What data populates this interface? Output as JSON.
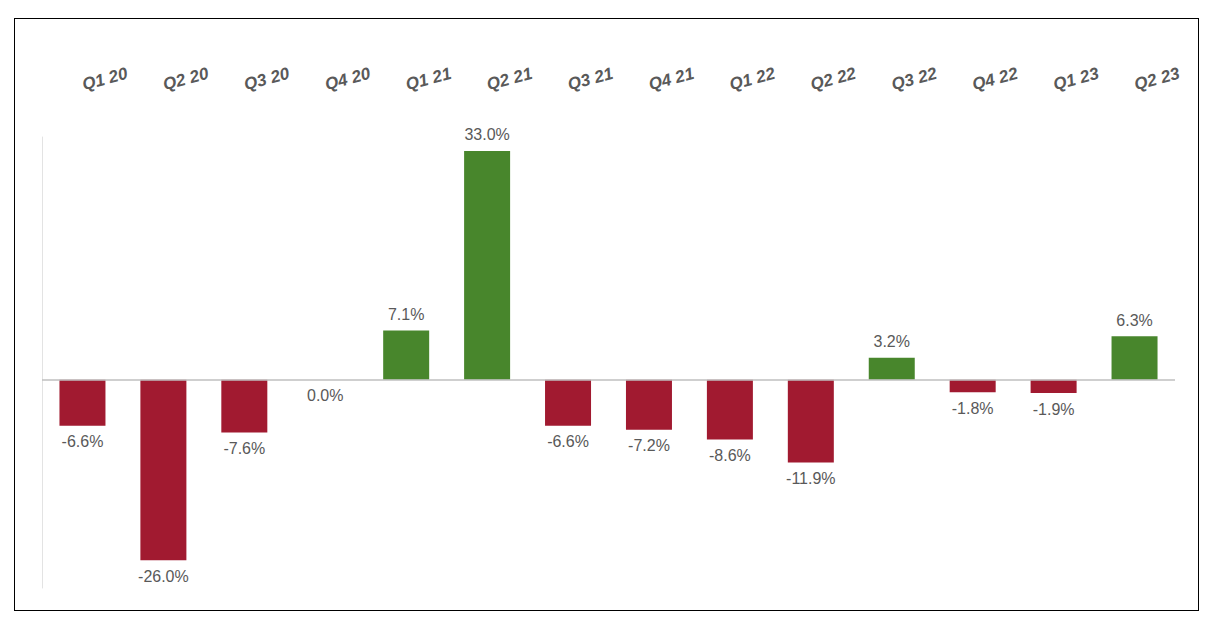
{
  "chart_data": {
    "type": "bar",
    "categories": [
      "Q1 20",
      "Q2 20",
      "Q3 20",
      "Q4 20",
      "Q1 21",
      "Q2 21",
      "Q3 21",
      "Q4 21",
      "Q1 22",
      "Q2 22",
      "Q3 22",
      "Q4 22",
      "Q1 23",
      "Q2 23"
    ],
    "values": [
      -6.6,
      -26.0,
      -7.6,
      0.0,
      7.1,
      33.0,
      -6.6,
      -7.2,
      -8.6,
      -11.9,
      3.2,
      -1.8,
      -1.9,
      6.3
    ],
    "value_labels": [
      "-6.6%",
      "-26.0%",
      "-7.6%",
      "0.0%",
      "7.1%",
      "33.0%",
      "-6.6%",
      "-7.2%",
      "-8.6%",
      "-11.9%",
      "3.2%",
      "-1.8%",
      "-1.9%",
      "6.3%"
    ],
    "colors": [
      "#a11a30",
      "#a11a30",
      "#a11a30",
      "#a11a30",
      "#48862c",
      "#48862c",
      "#a11a30",
      "#a11a30",
      "#a11a30",
      "#a11a30",
      "#48862c",
      "#a11a30",
      "#a11a30",
      "#48862c"
    ],
    "ylim": [
      -30,
      35
    ],
    "data_labels": true,
    "grid": false,
    "tick_labels": "x"
  }
}
